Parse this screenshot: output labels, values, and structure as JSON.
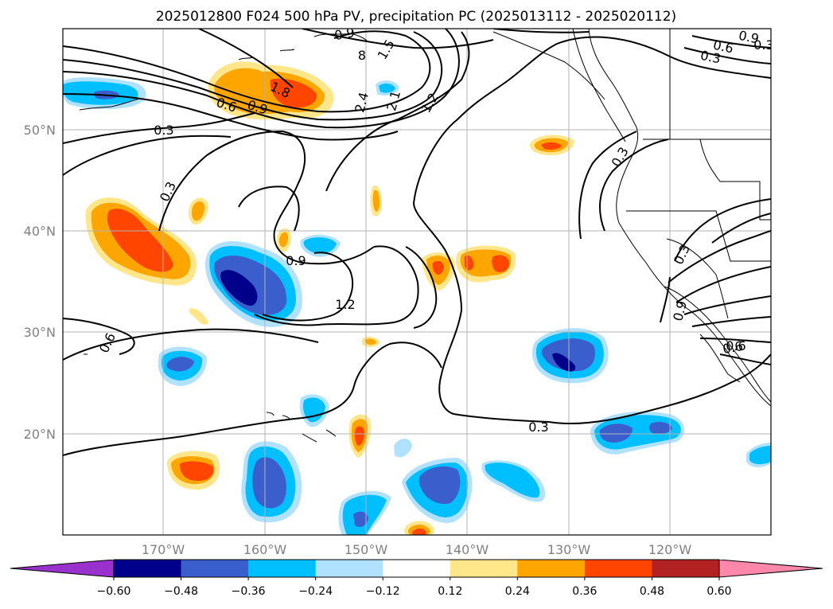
{
  "title": "2025012800 F024 500 hPa PV, precipitation PC (2025013112 - 2025020112)",
  "lat_labels": [
    "50°N",
    "40°N",
    "30°N",
    "20°N"
  ],
  "lon_labels": [
    "170°W",
    "160°W",
    "150°W",
    "140°W",
    "130°W",
    "120°W"
  ],
  "contour_labels": [
    "0.3",
    "0.6",
    "0.9",
    "1.2",
    "1.5",
    "1.8",
    "2.1",
    "2.4",
    "0.3",
    "0.3",
    "0.6",
    "0.9",
    "0.9",
    "1.2",
    "0.3",
    "0.6",
    "0.9",
    "0.6",
    "0.3",
    "0.3",
    "0.9",
    "0.6",
    "0.3",
    "8"
  ],
  "colorbar": {
    "colors": [
      "#9932cc",
      "#00008b",
      "#3a5fcd",
      "#00bfff",
      "#b0e2ff",
      "#ffffff",
      "#ffe68a",
      "#ffa500",
      "#ff4500",
      "#b22222",
      "#ff88aa"
    ],
    "ticks": [
      "−0.60",
      "−0.48",
      "−0.36",
      "−0.24",
      "−0.12",
      "0.12",
      "0.24",
      "0.36",
      "0.48",
      "0.60"
    ]
  }
}
